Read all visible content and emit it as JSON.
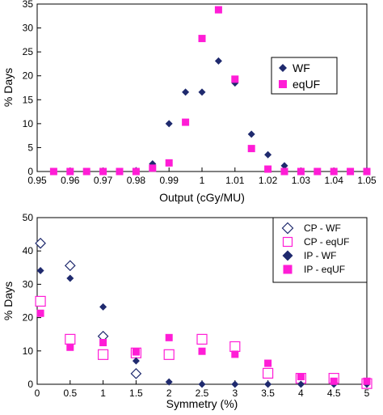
{
  "chart_data": [
    {
      "type": "scatter",
      "title": "",
      "xlabel": "Output (cGy/MU)",
      "ylabel": "% Days",
      "xlim": [
        0.95,
        1.05
      ],
      "ylim": [
        0,
        35
      ],
      "xticks": [
        0.95,
        0.96,
        0.97,
        0.98,
        0.99,
        1,
        1.01,
        1.02,
        1.03,
        1.04,
        1.05
      ],
      "xtick_labels": [
        "0.95",
        "0.96",
        "0.97",
        "0.98",
        "0.99",
        "1",
        "1.01",
        "1.02",
        "1.03",
        "1.04",
        "1.05"
      ],
      "yticks": [
        0,
        5,
        10,
        15,
        20,
        25,
        30,
        35
      ],
      "ytick_labels": [
        "0",
        "5",
        "10",
        "15",
        "20",
        "25",
        "30",
        "35"
      ],
      "grid": false,
      "legend_position": "right",
      "series": [
        {
          "name": "WF",
          "marker": "diamond-filled",
          "color": "#1f2a6e",
          "points": [
            [
              0.955,
              0
            ],
            [
              0.96,
              0
            ],
            [
              0.965,
              0
            ],
            [
              0.97,
              0
            ],
            [
              0.975,
              0
            ],
            [
              0.98,
              0.2
            ],
            [
              0.985,
              1.6
            ],
            [
              0.99,
              10
            ],
            [
              0.995,
              16.6
            ],
            [
              1.0,
              16.6
            ],
            [
              1.005,
              23.1
            ],
            [
              1.01,
              18.5
            ],
            [
              1.015,
              7.8
            ],
            [
              1.02,
              3.5
            ],
            [
              1.025,
              1.2
            ],
            [
              1.03,
              0
            ],
            [
              1.035,
              0
            ],
            [
              1.04,
              0
            ],
            [
              1.045,
              0
            ],
            [
              1.05,
              0.2
            ]
          ]
        },
        {
          "name": "eqUF",
          "marker": "square-filled",
          "color": "#ff1dd6",
          "points": [
            [
              0.955,
              0
            ],
            [
              0.96,
              0
            ],
            [
              0.965,
              0
            ],
            [
              0.97,
              0
            ],
            [
              0.975,
              0
            ],
            [
              0.98,
              0
            ],
            [
              0.985,
              0.7
            ],
            [
              0.99,
              1.8
            ],
            [
              0.995,
              10.3
            ],
            [
              1.0,
              27.8
            ],
            [
              1.005,
              33.8
            ],
            [
              1.01,
              19.3
            ],
            [
              1.015,
              4.8
            ],
            [
              1.02,
              0.5
            ],
            [
              1.025,
              0
            ],
            [
              1.03,
              0
            ],
            [
              1.035,
              0
            ],
            [
              1.04,
              0
            ],
            [
              1.045,
              0
            ],
            [
              1.05,
              0
            ]
          ]
        }
      ]
    },
    {
      "type": "scatter",
      "title": "",
      "xlabel": "Symmetry (%)",
      "ylabel": "% Days",
      "xlim": [
        0,
        5
      ],
      "ylim": [
        0,
        50
      ],
      "xticks": [
        0,
        0.5,
        1,
        1.5,
        2,
        2.5,
        3,
        3.5,
        4,
        4.5,
        5
      ],
      "xtick_labels": [
        "0",
        "0.5",
        "1",
        "1.5",
        "2",
        "2.5",
        "3",
        "3.5",
        "4",
        "4.5",
        "5"
      ],
      "yticks": [
        0,
        10,
        20,
        30,
        40,
        50
      ],
      "ytick_labels": [
        "0",
        "10",
        "20",
        "30",
        "40",
        "50"
      ],
      "grid": false,
      "legend_position": "top-right",
      "series": [
        {
          "name": "CP - WF",
          "marker": "diamond-open",
          "color": "#1f2a6e",
          "points": [
            [
              0.05,
              42.3
            ],
            [
              0.5,
              35.6
            ],
            [
              1.0,
              14.4
            ],
            [
              1.5,
              3.2
            ]
          ]
        },
        {
          "name": "CP - eqUF",
          "marker": "square-open",
          "color": "#ff1dd6",
          "points": [
            [
              0.05,
              24.9
            ],
            [
              0.5,
              13.5
            ],
            [
              1.0,
              8.9
            ],
            [
              1.5,
              9.4
            ],
            [
              2.0,
              8.9
            ],
            [
              2.5,
              13.5
            ],
            [
              3.0,
              11.3
            ],
            [
              3.5,
              3.3
            ],
            [
              4.0,
              1.8
            ],
            [
              4.5,
              1.8
            ],
            [
              5.0,
              0.2
            ]
          ]
        },
        {
          "name": "IP - WF",
          "marker": "diamond-filled",
          "color": "#1f2a6e",
          "points": [
            [
              0.05,
              34.1
            ],
            [
              0.5,
              31.8
            ],
            [
              1.0,
              23.2
            ],
            [
              1.5,
              7.0
            ],
            [
              2.0,
              0.7
            ],
            [
              2.5,
              0
            ],
            [
              3.0,
              0
            ],
            [
              3.5,
              0
            ],
            [
              4.0,
              0
            ],
            [
              4.5,
              0
            ],
            [
              5.0,
              0
            ]
          ]
        },
        {
          "name": "IP - eqUF",
          "marker": "square-filled",
          "color": "#ff1dd6",
          "points": [
            [
              0.05,
              21.3
            ],
            [
              0.5,
              11.1
            ],
            [
              1.0,
              12.5
            ],
            [
              1.5,
              9.7
            ],
            [
              2.0,
              14.0
            ],
            [
              2.5,
              9.9
            ],
            [
              3.0,
              9.0
            ],
            [
              3.5,
              6.3
            ],
            [
              4.0,
              2.3
            ],
            [
              4.5,
              0.9
            ],
            [
              5.0,
              0.9
            ]
          ]
        }
      ]
    }
  ]
}
